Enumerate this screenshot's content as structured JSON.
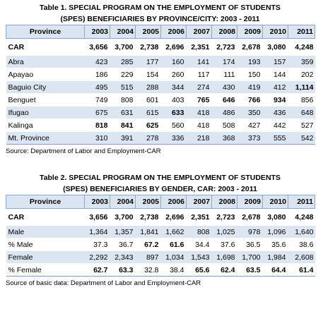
{
  "table1": {
    "title_line1": "Table 1. SPECIAL PROGRAM ON THE EMPLOYMENT OF STUDENTS",
    "title_line2": "(SPES) BENEFICIARIES BY PROVINCE/CITY: 2003 - 2011",
    "header": [
      "Province",
      "2003",
      "2004",
      "2005",
      "2006",
      "2007",
      "2008",
      "2009",
      "2010",
      "2011"
    ],
    "car_row": {
      "label": "CAR",
      "values": [
        "3,656",
        "3,700",
        "2,738",
        "2,696",
        "2,351",
        "2,723",
        "2,678",
        "3,080",
        "4,248"
      ]
    },
    "rows": [
      {
        "label": "Abra",
        "values": [
          "423",
          "285",
          "177",
          "160",
          "141",
          "174",
          "193",
          "157",
          "359"
        ]
      },
      {
        "label": "Apayao",
        "values": [
          "186",
          "229",
          "154",
          "260",
          "117",
          "111",
          "150",
          "144",
          "202"
        ]
      },
      {
        "label": "Baguio City",
        "values": [
          "495",
          "515",
          "288",
          "344",
          "274",
          "430",
          "419",
          "412",
          "1,114"
        ]
      },
      {
        "label": "Benguet",
        "values": [
          "749",
          "808",
          "601",
          "403",
          "765",
          "646",
          "766",
          "934",
          "856"
        ]
      },
      {
        "label": "Ifugao",
        "values": [
          "675",
          "631",
          "615",
          "633",
          "418",
          "486",
          "350",
          "436",
          "648"
        ]
      },
      {
        "label": "Kalinga",
        "values": [
          "818",
          "841",
          "625",
          "560",
          "418",
          "508",
          "427",
          "442",
          "527"
        ]
      },
      {
        "label": "Mt. Province",
        "values": [
          "310",
          "391",
          "278",
          "336",
          "218",
          "368",
          "373",
          "555",
          "542"
        ]
      }
    ],
    "source": "Source: Department of Labor and Employment-CAR"
  },
  "table2": {
    "title_line1": "Table 2. SPECIAL PROGRAM ON THE EMPLOYMENT OF STUDENTS",
    "title_line2": "(SPES) BENEFICIARIES BY GENDER, CAR: 2003 - 2011",
    "header": [
      "Province",
      "2003",
      "2004",
      "2005",
      "2006",
      "2007",
      "2008",
      "2009",
      "2010",
      "2011"
    ],
    "car_row": {
      "label": "CAR",
      "values": [
        "3,656",
        "3,700",
        "2,738",
        "2,696",
        "2,351",
        "2,723",
        "2,678",
        "3,080",
        "4,248"
      ]
    },
    "rows": [
      {
        "label": "Male",
        "values": [
          "1,364",
          "1,357",
          "1,841",
          "1,662",
          "808",
          "1,025",
          "978",
          "1,096",
          "1,640"
        ]
      },
      {
        "label": "% Male",
        "values": [
          "37.3",
          "36.7",
          "67.2",
          "61.6",
          "34.4",
          "37.6",
          "36.5",
          "35.6",
          "38.6"
        ]
      },
      {
        "label": "Female",
        "values": [
          "2,292",
          "2,343",
          "897",
          "1,034",
          "1,543",
          "1,698",
          "1,700",
          "1,984",
          "2,608"
        ]
      },
      {
        "label": "% Female",
        "values": [
          "62.7",
          "63.3",
          "32.8",
          "38.4",
          "65.6",
          "62.4",
          "63.5",
          "64.4",
          "61.4"
        ]
      }
    ],
    "source": "Source of basic data: Department of Labor and Employment-CAR"
  },
  "colors": {
    "header_bg": "#dbe5f1",
    "stripe_bg": "#dce6f2",
    "border": "#8aa8d0"
  }
}
